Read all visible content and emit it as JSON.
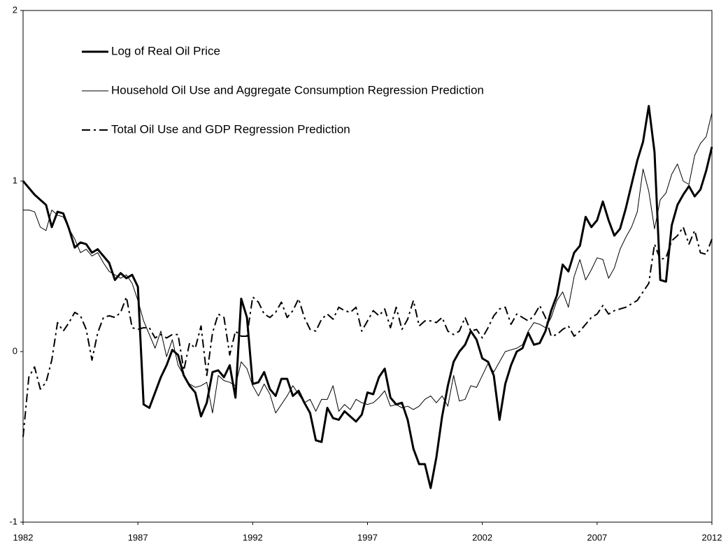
{
  "chart_data": {
    "type": "line",
    "x": [
      1982,
      1982.25,
      1982.5,
      1982.75,
      1983,
      1983.25,
      1983.5,
      1983.75,
      1984,
      1984.25,
      1984.5,
      1984.75,
      1985,
      1985.25,
      1985.5,
      1985.75,
      1986,
      1986.25,
      1986.5,
      1986.75,
      1987,
      1987.25,
      1987.5,
      1987.75,
      1988,
      1988.25,
      1988.5,
      1988.75,
      1989,
      1989.25,
      1989.5,
      1989.75,
      1990,
      1990.25,
      1990.5,
      1990.75,
      1991,
      1991.25,
      1991.5,
      1991.75,
      1992,
      1992.25,
      1992.5,
      1992.75,
      1993,
      1993.25,
      1993.5,
      1993.75,
      1994,
      1994.25,
      1994.5,
      1994.75,
      1995,
      1995.25,
      1995.5,
      1995.75,
      1996,
      1996.25,
      1996.5,
      1996.75,
      1997,
      1997.25,
      1997.5,
      1997.75,
      1998,
      1998.25,
      1998.5,
      1998.75,
      1999,
      1999.25,
      1999.5,
      1999.75,
      2000,
      2000.25,
      2000.5,
      2000.75,
      2001,
      2001.25,
      2001.5,
      2001.75,
      2002,
      2002.25,
      2002.5,
      2002.75,
      2003,
      2003.25,
      2003.5,
      2003.75,
      2004,
      2004.25,
      2004.5,
      2004.75,
      2005,
      2005.25,
      2005.5,
      2005.75,
      2006,
      2006.25,
      2006.5,
      2006.75,
      2007,
      2007.25,
      2007.5,
      2007.75,
      2008,
      2008.25,
      2008.5,
      2008.75,
      2009,
      2009.25,
      2009.5,
      2009.75,
      2010,
      2010.25,
      2010.5,
      2010.75,
      2011,
      2011.25,
      2011.5,
      2011.75,
      2012
    ],
    "series": [
      {
        "name": "Log of Real Oil Price",
        "color": "#000000",
        "style": "thick",
        "values": [
          1.0,
          0.96,
          0.92,
          0.89,
          0.86,
          0.73,
          0.82,
          0.81,
          0.72,
          0.61,
          0.64,
          0.63,
          0.58,
          0.6,
          0.56,
          0.52,
          0.42,
          0.46,
          0.43,
          0.45,
          0.38,
          -0.31,
          -0.33,
          -0.24,
          -0.15,
          -0.08,
          0.01,
          -0.02,
          -0.14,
          -0.2,
          -0.24,
          -0.38,
          -0.3,
          -0.12,
          -0.11,
          -0.15,
          -0.08,
          -0.27,
          0.31,
          0.2,
          -0.19,
          -0.18,
          -0.12,
          -0.22,
          -0.26,
          -0.16,
          -0.16,
          -0.26,
          -0.23,
          -0.3,
          -0.36,
          -0.52,
          -0.53,
          -0.33,
          -0.39,
          -0.4,
          -0.35,
          -0.38,
          -0.41,
          -0.37,
          -0.24,
          -0.25,
          -0.15,
          -0.1,
          -0.27,
          -0.31,
          -0.3,
          -0.4,
          -0.57,
          -0.66,
          -0.66,
          -0.8,
          -0.62,
          -0.38,
          -0.2,
          -0.06,
          0.0,
          0.04,
          0.12,
          0.07,
          -0.04,
          -0.06,
          -0.14,
          -0.4,
          -0.19,
          -0.08,
          0.0,
          0.02,
          0.11,
          0.04,
          0.05,
          0.12,
          0.24,
          0.33,
          0.51,
          0.47,
          0.58,
          0.62,
          0.79,
          0.73,
          0.77,
          0.88,
          0.77,
          0.68,
          0.72,
          0.84,
          0.98,
          1.12,
          1.23,
          1.44,
          1.17,
          0.42,
          0.41,
          0.74,
          0.86,
          0.92,
          0.97,
          0.91,
          0.95,
          1.06,
          1.2
        ]
      },
      {
        "name": "Household Oil Use and Aggregate Consumption Regression Prediction",
        "color": "#000000",
        "style": "thin",
        "values": [
          0.83,
          0.83,
          0.82,
          0.73,
          0.71,
          0.83,
          0.8,
          0.79,
          0.72,
          0.66,
          0.58,
          0.6,
          0.56,
          0.58,
          0.52,
          0.47,
          0.45,
          0.43,
          0.45,
          0.4,
          0.3,
          0.18,
          0.1,
          0.02,
          0.12,
          -0.03,
          0.07,
          -0.08,
          -0.14,
          -0.19,
          -0.21,
          -0.2,
          -0.18,
          -0.36,
          -0.14,
          -0.17,
          -0.18,
          -0.2,
          -0.06,
          -0.1,
          -0.2,
          -0.26,
          -0.19,
          -0.25,
          -0.36,
          -0.31,
          -0.26,
          -0.2,
          -0.25,
          -0.3,
          -0.28,
          -0.35,
          -0.28,
          -0.28,
          -0.2,
          -0.35,
          -0.31,
          -0.34,
          -0.28,
          -0.3,
          -0.31,
          -0.3,
          -0.27,
          -0.23,
          -0.32,
          -0.31,
          -0.33,
          -0.32,
          -0.34,
          -0.32,
          -0.28,
          -0.26,
          -0.3,
          -0.26,
          -0.32,
          -0.14,
          -0.29,
          -0.28,
          -0.2,
          -0.21,
          -0.14,
          -0.07,
          -0.12,
          -0.06,
          0.0,
          0.01,
          0.02,
          0.04,
          0.12,
          0.17,
          0.16,
          0.14,
          0.2,
          0.3,
          0.35,
          0.26,
          0.44,
          0.54,
          0.42,
          0.48,
          0.55,
          0.54,
          0.43,
          0.49,
          0.6,
          0.67,
          0.73,
          0.82,
          1.07,
          0.94,
          0.72,
          0.89,
          0.93,
          1.04,
          1.1,
          1.0,
          0.98,
          1.15,
          1.22,
          1.26,
          1.4
        ]
      },
      {
        "name": "Total Oil Use and GDP Regression Prediction",
        "color": "#000000",
        "style": "dashed",
        "values": [
          -0.5,
          -0.15,
          -0.09,
          -0.22,
          -0.18,
          -0.05,
          0.17,
          0.12,
          0.17,
          0.23,
          0.21,
          0.13,
          -0.05,
          0.11,
          0.2,
          0.21,
          0.2,
          0.23,
          0.32,
          0.14,
          0.13,
          0.14,
          0.14,
          0.08,
          0.1,
          0.08,
          0.1,
          0.1,
          -0.11,
          0.05,
          0.02,
          0.15,
          -0.14,
          0.11,
          0.22,
          0.2,
          -0.02,
          0.12,
          0.09,
          0.09,
          0.32,
          0.29,
          0.22,
          0.2,
          0.23,
          0.29,
          0.2,
          0.24,
          0.31,
          0.2,
          0.13,
          0.12,
          0.19,
          0.22,
          0.19,
          0.26,
          0.24,
          0.23,
          0.26,
          0.12,
          0.18,
          0.24,
          0.21,
          0.25,
          0.14,
          0.26,
          0.13,
          0.19,
          0.3,
          0.15,
          0.18,
          0.18,
          0.17,
          0.2,
          0.12,
          0.1,
          0.12,
          0.2,
          0.12,
          0.13,
          0.08,
          0.14,
          0.21,
          0.25,
          0.26,
          0.16,
          0.22,
          0.2,
          0.18,
          0.21,
          0.27,
          0.2,
          0.09,
          0.1,
          0.13,
          0.15,
          0.09,
          0.12,
          0.16,
          0.2,
          0.22,
          0.27,
          0.22,
          0.24,
          0.25,
          0.26,
          0.28,
          0.3,
          0.35,
          0.4,
          0.63,
          0.54,
          0.55,
          0.65,
          0.68,
          0.73,
          0.63,
          0.71,
          0.58,
          0.57,
          0.66
        ]
      }
    ],
    "xlim": [
      1982,
      2012
    ],
    "xticks": [
      1982,
      1987,
      1992,
      1997,
      2002,
      2007,
      2012
    ],
    "ylim": [
      -1,
      2
    ],
    "yticks": [
      -1,
      0,
      1,
      2
    ],
    "legend": "top-left"
  }
}
